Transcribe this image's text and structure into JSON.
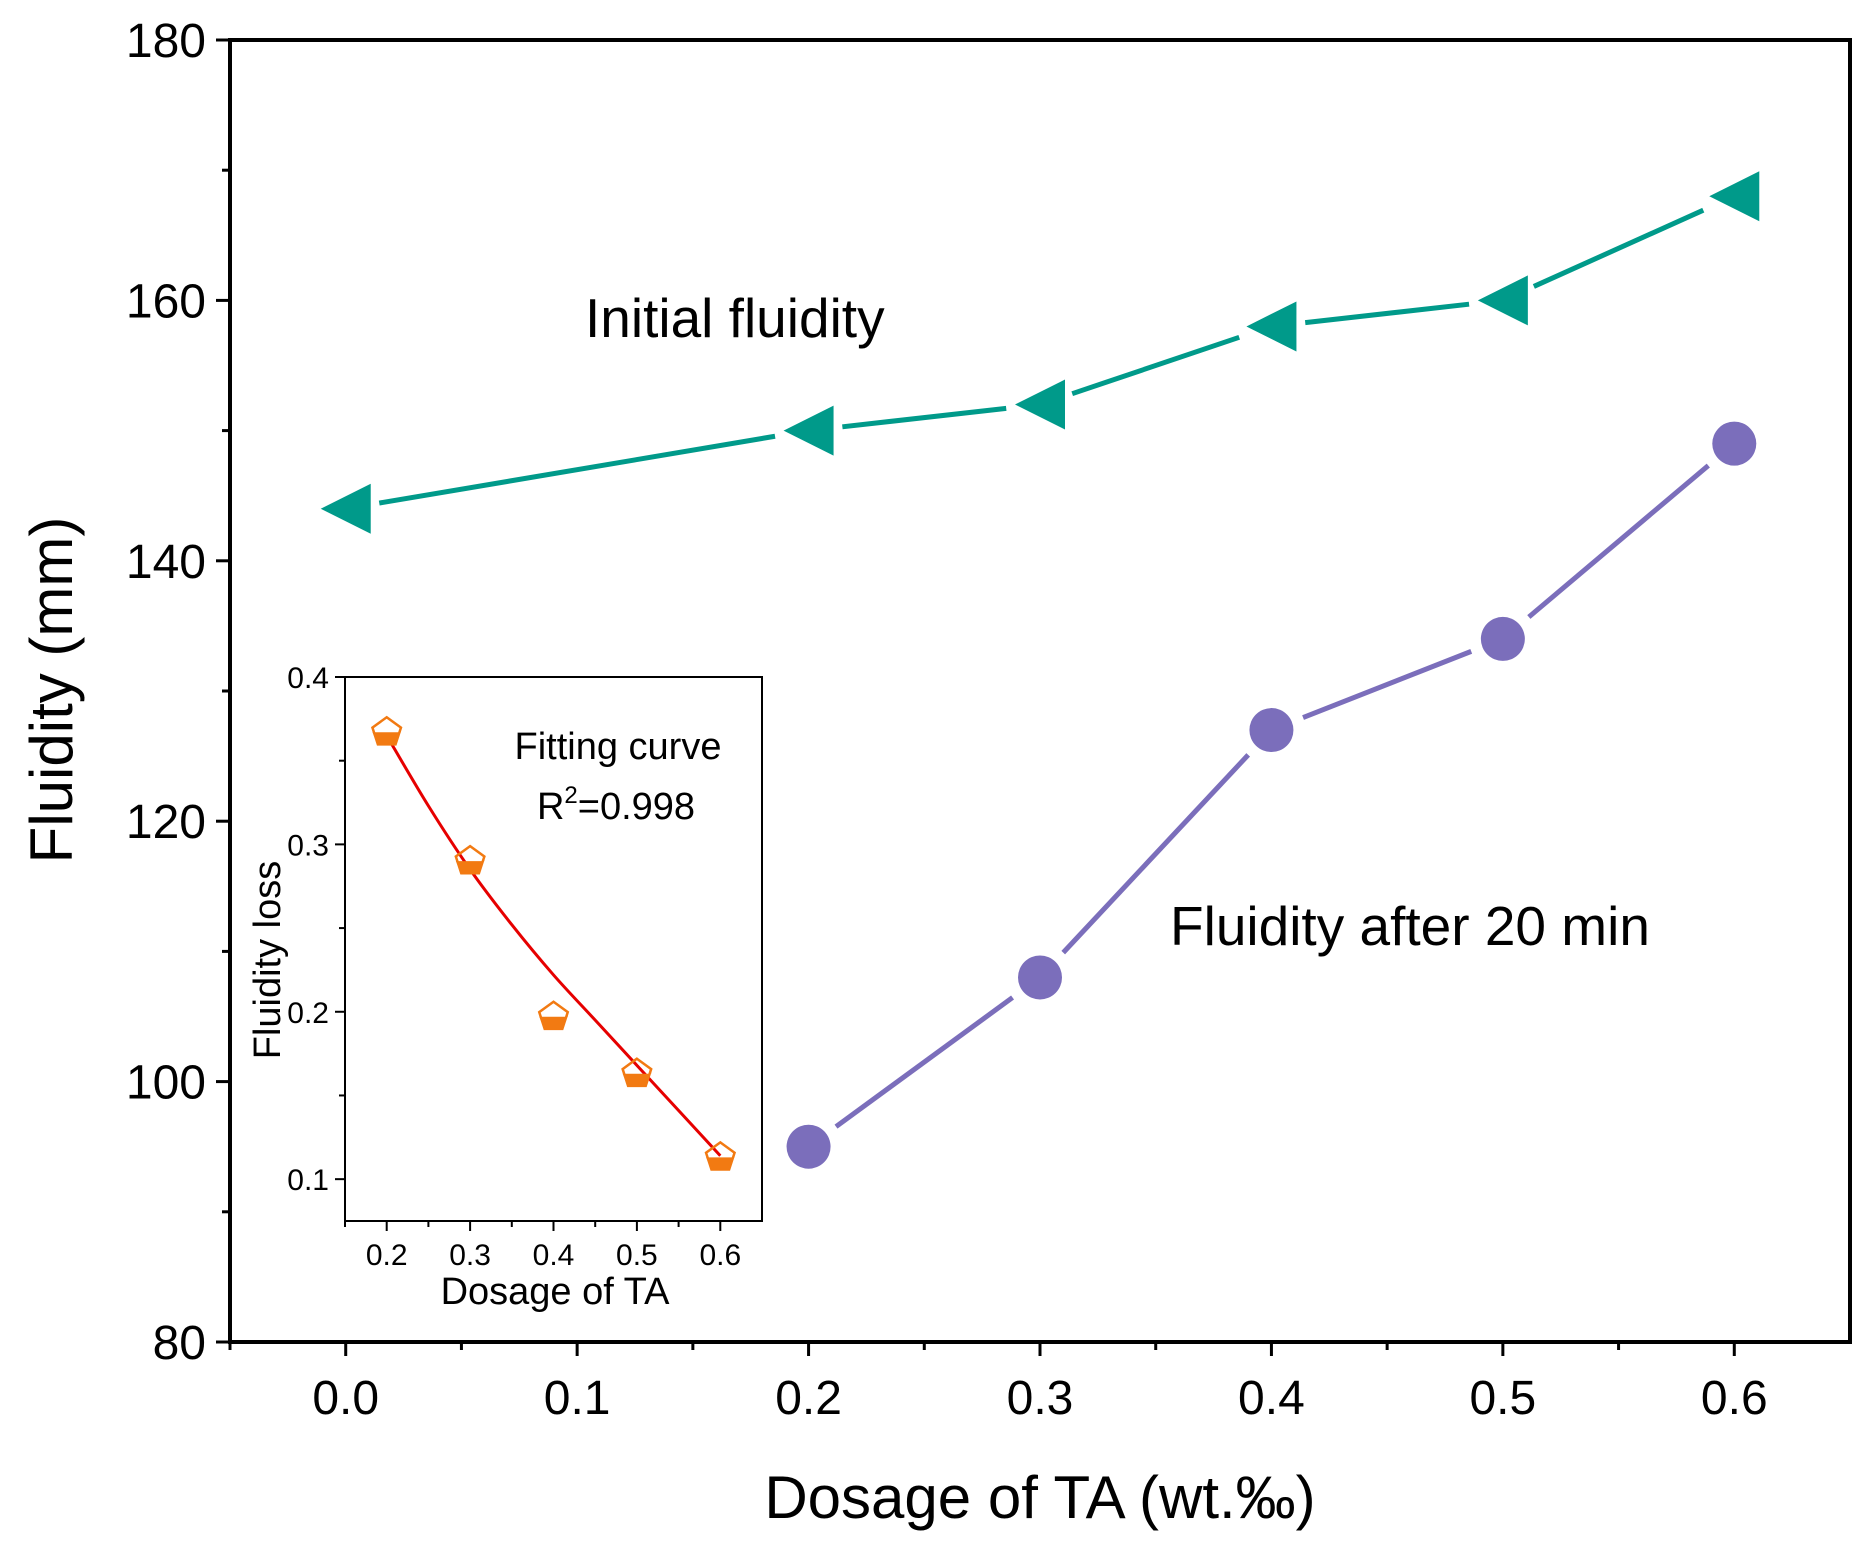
{
  "colors": {
    "initial": "#009A8A",
    "after": "#7B6EBB",
    "inset_marker": "#F27A12",
    "inset_fit": "#E60000",
    "axis": "#000000"
  },
  "chart_data": [
    {
      "type": "line",
      "xlabel": "Dosage of TA (wt.‰)",
      "ylabel": "Fluidity (mm)",
      "xlim": [
        -0.05,
        0.65
      ],
      "ylim": [
        80,
        180
      ],
      "xticks": [
        "0.0",
        "0.1",
        "0.2",
        "0.3",
        "0.4",
        "0.5",
        "0.6"
      ],
      "xtick_values": [
        0.0,
        0.1,
        0.2,
        0.3,
        0.4,
        0.5,
        0.6
      ],
      "yticks": [
        "80",
        "100",
        "120",
        "140",
        "160",
        "180"
      ],
      "ytick_values": [
        80,
        100,
        120,
        140,
        160,
        180
      ],
      "grid": false,
      "series": [
        {
          "name": "Initial fluidity",
          "marker": "left-triangle",
          "x": [
            0.0,
            0.2,
            0.3,
            0.4,
            0.5,
            0.6
          ],
          "y": [
            144,
            150,
            152,
            158,
            160,
            168
          ]
        },
        {
          "name": "Fluidity after 20 min",
          "marker": "circle",
          "x": [
            0.2,
            0.3,
            0.4,
            0.5,
            0.6
          ],
          "y": [
            95,
            108,
            127,
            134,
            149
          ]
        }
      ]
    },
    {
      "type": "scatter",
      "inset": true,
      "xlabel": "Dosage of TA",
      "ylabel": "Fluidity loss",
      "xlim": [
        0.15,
        0.65
      ],
      "ylim": [
        0.075,
        0.4
      ],
      "xticks": [
        "0.2",
        "0.3",
        "0.4",
        "0.5",
        "0.6"
      ],
      "xtick_values": [
        0.2,
        0.3,
        0.4,
        0.5,
        0.6
      ],
      "yticks": [
        "0.1",
        "0.2",
        "0.3",
        "0.4"
      ],
      "ytick_values": [
        0.1,
        0.2,
        0.3,
        0.4
      ],
      "series": [
        {
          "marker": "pentagon-half-filled",
          "x": [
            0.2,
            0.3,
            0.4,
            0.5,
            0.6
          ],
          "y": [
            0.367,
            0.29,
            0.197,
            0.163,
            0.113
          ]
        }
      ],
      "fit": {
        "x": [
          0.2,
          0.25,
          0.3,
          0.35,
          0.4,
          0.45,
          0.5,
          0.55,
          0.6
        ],
        "y": [
          0.365,
          0.323,
          0.285,
          0.252,
          0.222,
          0.195,
          0.168,
          0.141,
          0.114
        ]
      },
      "annotation": {
        "line1": "Fitting curve",
        "r2_prefix": "R",
        "r2_sup": "2",
        "r2_value": "=0.998"
      }
    }
  ]
}
